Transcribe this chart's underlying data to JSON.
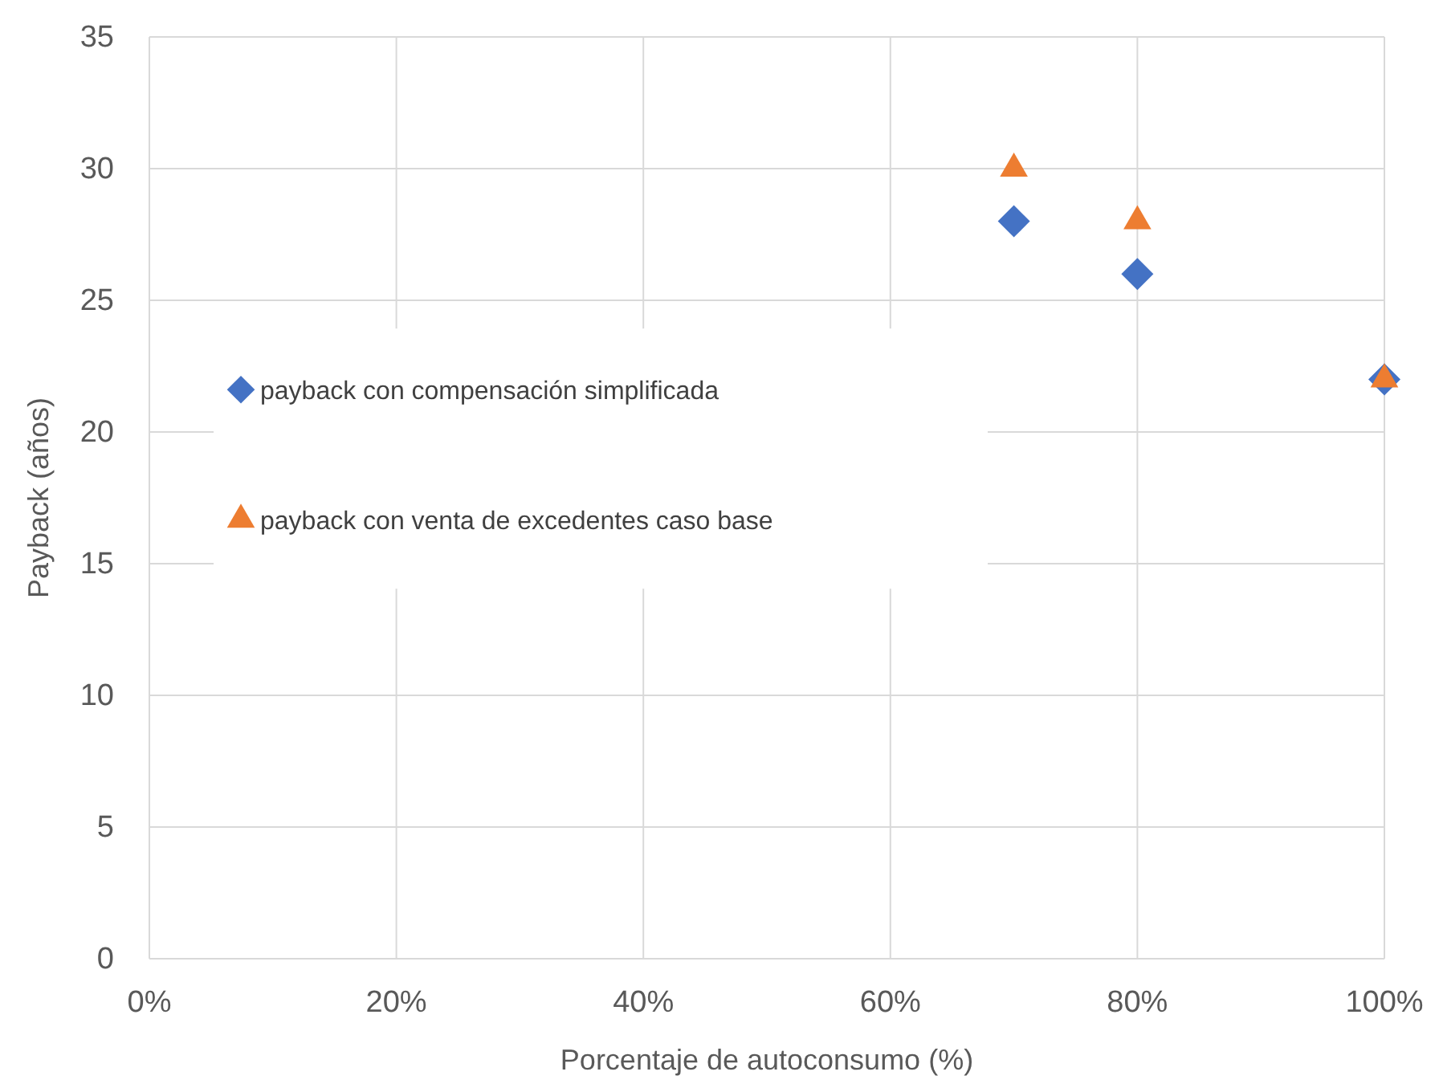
{
  "chart_data": {
    "type": "scatter",
    "xlabel": "Porcentaje de autoconsumo (%)",
    "ylabel": "Payback (años)",
    "xlim": [
      0,
      100
    ],
    "ylim": [
      0,
      35
    ],
    "xticks": [
      {
        "value": 0,
        "label": "0%"
      },
      {
        "value": 20,
        "label": "20%"
      },
      {
        "value": 40,
        "label": "40%"
      },
      {
        "value": 60,
        "label": "60%"
      },
      {
        "value": 80,
        "label": "80%"
      },
      {
        "value": 100,
        "label": "100%"
      }
    ],
    "yticks": [
      0,
      5,
      10,
      15,
      20,
      25,
      30,
      35
    ],
    "grid": true,
    "legend": "left",
    "series": [
      {
        "name": "payback con compensación simplificada",
        "color": "#4472c4",
        "marker": "diamond",
        "x": [
          70,
          80,
          100
        ],
        "values": [
          28,
          26,
          22
        ]
      },
      {
        "name": "payback con venta de excedentes caso base",
        "color": "#ed7d31",
        "marker": "triangle",
        "x": [
          70,
          80,
          100
        ],
        "values": [
          30,
          28,
          22
        ]
      }
    ]
  }
}
